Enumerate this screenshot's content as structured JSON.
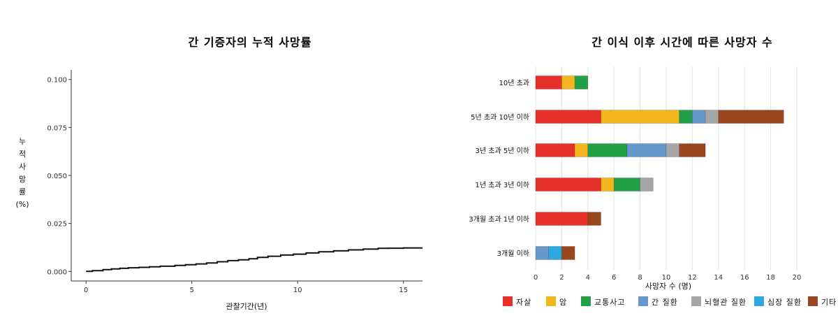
{
  "chart_data": [
    {
      "type": "line",
      "title": "간 기증자의 누적 사망률",
      "xlabel": "관찰기간(년)",
      "ylabel": "누적사망률(%)",
      "ylabel_chars": [
        "누",
        "적",
        "사",
        "망",
        "률",
        "(%)"
      ],
      "xlim": [
        -0.7,
        15.9
      ],
      "ylim": [
        -0.005,
        0.105
      ],
      "x_ticks": [
        0,
        5,
        10,
        15
      ],
      "y_ticks": [
        0.0,
        0.025,
        0.05,
        0.075,
        0.1
      ],
      "y_tick_labels": [
        "0.000",
        "0.025",
        "0.050",
        "0.075",
        "0.100"
      ],
      "grid": false,
      "series": [
        {
          "x": [
            0,
            0.3,
            0.8,
            1.2,
            1.6,
            2.0,
            2.5,
            3.0,
            3.5,
            4.2,
            4.7,
            5.2,
            5.7,
            6.2,
            6.7,
            7.2,
            7.7,
            8.1,
            8.6,
            9.2,
            9.8,
            10.4,
            11.0,
            11.7,
            12.4,
            13.1,
            13.8,
            14.3,
            15.0,
            15.9
          ],
          "y": [
            0,
            0.0004,
            0.0009,
            0.0013,
            0.0016,
            0.0019,
            0.0021,
            0.0024,
            0.0027,
            0.0031,
            0.0035,
            0.0039,
            0.0044,
            0.005,
            0.0056,
            0.006,
            0.0066,
            0.0073,
            0.0079,
            0.0085,
            0.009,
            0.0096,
            0.0102,
            0.0107,
            0.0112,
            0.0116,
            0.012,
            0.0121,
            0.0122,
            0.0122
          ]
        }
      ]
    },
    {
      "type": "bar",
      "orientation": "horizontal",
      "stacked": true,
      "title": "간 이식 이후 시간에 따른 사망자 수",
      "xlabel": "사망자 수 (명)",
      "xlim": [
        0,
        20
      ],
      "x_ticks": [
        0,
        2,
        4,
        6,
        8,
        10,
        12,
        14,
        16,
        18,
        20
      ],
      "grid": true,
      "legend_position": "bottom",
      "categories": [
        "10년 초과",
        "5년 초과 10년 이하",
        "3년 초과 5년 이하",
        "1년 초과 3년 이하",
        "3개월 초과 1년 이하",
        "3개월 이하"
      ],
      "series": [
        {
          "name": "자살",
          "color": "#e8302a",
          "values": [
            2,
            5,
            3,
            5,
            4,
            0
          ]
        },
        {
          "name": "암",
          "color": "#f3b61f",
          "values": [
            1,
            6,
            1,
            1,
            0,
            0
          ]
        },
        {
          "name": "교통사고",
          "color": "#22a047",
          "values": [
            1,
            1,
            3,
            2,
            0,
            0
          ]
        },
        {
          "name": "간 질환",
          "color": "#6698cc",
          "values": [
            0,
            1,
            3,
            0,
            0,
            1
          ]
        },
        {
          "name": "뇌혈관 질환",
          "color": "#a6a6a6",
          "values": [
            0,
            1,
            1,
            1,
            0,
            0
          ]
        },
        {
          "name": "심장 질환",
          "color": "#2ea7e0",
          "values": [
            0,
            0,
            0,
            0,
            0,
            1
          ]
        },
        {
          "name": "기타",
          "color": "#99461f",
          "values": [
            0,
            5,
            2,
            0,
            1,
            1
          ]
        }
      ]
    }
  ]
}
